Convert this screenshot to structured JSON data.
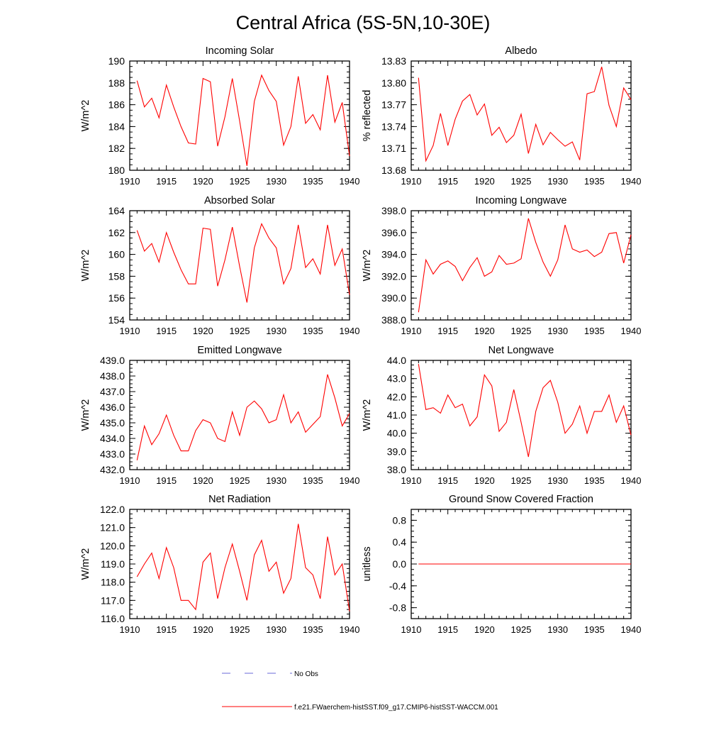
{
  "figure": {
    "title": "Central Africa (5S-5N,10-30E)",
    "colors": {
      "series": "#ff0000",
      "axis": "#000000",
      "obs": "#6a6ad8"
    }
  },
  "legend": {
    "obs_label": "No Obs",
    "model_label": "f.e21.FWaerchem-histSST.f09_g17.CMIP6-histSST-WACCM.001"
  },
  "chart_data": [
    {
      "type": "line",
      "title": "Incoming Solar",
      "ylabel": "W/m^2",
      "xlim": [
        1910,
        1940
      ],
      "ylim": [
        180,
        190
      ],
      "yticks": [
        180,
        182,
        184,
        186,
        188,
        190
      ],
      "ytick_labels": [
        "180",
        "182",
        "184",
        "186",
        "188",
        "190"
      ],
      "yminor": 0.5,
      "xticks": [
        1910,
        1915,
        1920,
        1925,
        1930,
        1935,
        1940
      ],
      "xtick_labels": [
        "1910",
        "1915",
        "1920",
        "1925",
        "1930",
        "1935",
        "1940"
      ],
      "x": [
        1911,
        1912,
        1913,
        1914,
        1915,
        1916,
        1917,
        1918,
        1919,
        1920,
        1921,
        1922,
        1923,
        1924,
        1925,
        1926,
        1927,
        1928,
        1929,
        1930,
        1931,
        1932,
        1933,
        1934,
        1935,
        1936,
        1937,
        1938,
        1939,
        1940
      ],
      "values": [
        188.2,
        185.8,
        186.6,
        184.8,
        187.8,
        185.8,
        184.0,
        182.5,
        182.4,
        188.4,
        188.1,
        182.2,
        184.9,
        188.4,
        184.5,
        180.4,
        186.3,
        188.7,
        187.3,
        186.3,
        182.3,
        184.0,
        188.6,
        184.3,
        185.1,
        183.7,
        188.7,
        184.4,
        186.2,
        181.3
      ]
    },
    {
      "type": "line",
      "title": "Albedo",
      "ylabel": "% reflected",
      "xlim": [
        1910,
        1940
      ],
      "ylim": [
        13.68,
        13.83
      ],
      "yticks": [
        13.68,
        13.71,
        13.74,
        13.77,
        13.8,
        13.83
      ],
      "ytick_labels": [
        "13.68",
        "13.71",
        "13.74",
        "13.77",
        "13.80",
        "13.83"
      ],
      "yminor": 0.0075,
      "xticks": [
        1910,
        1915,
        1920,
        1925,
        1930,
        1935,
        1940
      ],
      "xtick_labels": [
        "1910",
        "1915",
        "1920",
        "1925",
        "1930",
        "1935",
        "1940"
      ],
      "x": [
        1911,
        1912,
        1913,
        1914,
        1915,
        1916,
        1917,
        1918,
        1919,
        1920,
        1921,
        1922,
        1923,
        1924,
        1925,
        1926,
        1927,
        1928,
        1929,
        1930,
        1931,
        1932,
        1933,
        1934,
        1935,
        1936,
        1937,
        1938,
        1939,
        1940
      ],
      "values": [
        13.807,
        13.693,
        13.714,
        13.758,
        13.714,
        13.75,
        13.775,
        13.784,
        13.756,
        13.771,
        13.728,
        13.739,
        13.718,
        13.728,
        13.757,
        13.703,
        13.743,
        13.715,
        13.732,
        13.722,
        13.713,
        13.719,
        13.694,
        13.785,
        13.788,
        13.822,
        13.769,
        13.74,
        13.793,
        13.777
      ]
    },
    {
      "type": "line",
      "title": "Absorbed Solar",
      "ylabel": "W/m^2",
      "xlim": [
        1910,
        1940
      ],
      "ylim": [
        154,
        164
      ],
      "yticks": [
        154,
        156,
        158,
        160,
        162,
        164
      ],
      "ytick_labels": [
        "154",
        "156",
        "158",
        "160",
        "162",
        "164"
      ],
      "yminor": 0.5,
      "xticks": [
        1910,
        1915,
        1920,
        1925,
        1930,
        1935,
        1940
      ],
      "xtick_labels": [
        "1910",
        "1915",
        "1920",
        "1925",
        "1930",
        "1935",
        "1940"
      ],
      "x": [
        1911,
        1912,
        1913,
        1914,
        1915,
        1916,
        1917,
        1918,
        1919,
        1920,
        1921,
        1922,
        1923,
        1924,
        1925,
        1926,
        1927,
        1928,
        1929,
        1930,
        1931,
        1932,
        1933,
        1934,
        1935,
        1936,
        1937,
        1938,
        1939,
        1940
      ],
      "values": [
        162.2,
        160.3,
        161.0,
        159.3,
        162.0,
        160.2,
        158.6,
        157.3,
        157.3,
        162.4,
        162.3,
        157.1,
        159.5,
        162.5,
        158.9,
        155.6,
        160.6,
        162.8,
        161.5,
        160.6,
        157.3,
        158.7,
        162.7,
        158.8,
        159.6,
        158.2,
        162.7,
        159.0,
        160.5,
        156.3
      ]
    },
    {
      "type": "line",
      "title": "Incoming Longwave",
      "ylabel": "W/m^2",
      "xlim": [
        1910,
        1940
      ],
      "ylim": [
        388,
        398
      ],
      "yticks": [
        388,
        390,
        392,
        394,
        396,
        398
      ],
      "ytick_labels": [
        "388.0",
        "390.0",
        "392.0",
        "394.0",
        "396.0",
        "398.0"
      ],
      "yminor": 0.5,
      "xticks": [
        1910,
        1915,
        1920,
        1925,
        1930,
        1935,
        1940
      ],
      "xtick_labels": [
        "1910",
        "1915",
        "1920",
        "1925",
        "1930",
        "1935",
        "1940"
      ],
      "x": [
        1911,
        1912,
        1913,
        1914,
        1915,
        1916,
        1917,
        1918,
        1919,
        1920,
        1921,
        1922,
        1923,
        1924,
        1925,
        1926,
        1927,
        1928,
        1929,
        1930,
        1931,
        1932,
        1933,
        1934,
        1935,
        1936,
        1937,
        1938,
        1939,
        1940
      ],
      "values": [
        388.7,
        393.5,
        392.2,
        393.1,
        393.4,
        392.9,
        391.6,
        392.8,
        393.7,
        392.0,
        392.4,
        393.9,
        393.1,
        393.2,
        393.6,
        397.3,
        395.1,
        393.3,
        392.0,
        393.5,
        396.7,
        394.5,
        394.2,
        394.4,
        393.8,
        394.2,
        395.9,
        396.0,
        393.2,
        395.8
      ]
    },
    {
      "type": "line",
      "title": "Emitted Longwave",
      "ylabel": "W/m^2",
      "xlim": [
        1910,
        1940
      ],
      "ylim": [
        432,
        439
      ],
      "yticks": [
        432,
        433,
        434,
        435,
        436,
        437,
        438,
        439
      ],
      "ytick_labels": [
        "432.0",
        "433.0",
        "434.0",
        "435.0",
        "436.0",
        "437.0",
        "438.0",
        "439.0"
      ],
      "yminor": 0.25,
      "xticks": [
        1910,
        1915,
        1920,
        1925,
        1930,
        1935,
        1940
      ],
      "xtick_labels": [
        "1910",
        "1915",
        "1920",
        "1925",
        "1930",
        "1935",
        "1940"
      ],
      "x": [
        1911,
        1912,
        1913,
        1914,
        1915,
        1916,
        1917,
        1918,
        1919,
        1920,
        1921,
        1922,
        1923,
        1924,
        1925,
        1926,
        1927,
        1928,
        1929,
        1930,
        1931,
        1932,
        1933,
        1934,
        1935,
        1936,
        1937,
        1938,
        1939,
        1940
      ],
      "values": [
        432.6,
        434.8,
        433.6,
        434.3,
        435.5,
        434.2,
        433.2,
        433.2,
        434.5,
        435.2,
        435.0,
        434.0,
        433.8,
        435.7,
        434.2,
        436.0,
        436.4,
        435.9,
        435.0,
        435.2,
        436.8,
        435.0,
        435.7,
        434.4,
        434.9,
        435.4,
        438.1,
        436.6,
        434.8,
        435.6
      ]
    },
    {
      "type": "line",
      "title": "Net Longwave",
      "ylabel": "W/m^2",
      "xlim": [
        1910,
        1940
      ],
      "ylim": [
        38,
        44
      ],
      "yticks": [
        38,
        39,
        40,
        41,
        42,
        43,
        44
      ],
      "ytick_labels": [
        "38.0",
        "39.0",
        "40.0",
        "41.0",
        "42.0",
        "43.0",
        "44.0"
      ],
      "yminor": 0.25,
      "xticks": [
        1910,
        1915,
        1920,
        1925,
        1930,
        1935,
        1940
      ],
      "xtick_labels": [
        "1910",
        "1915",
        "1920",
        "1925",
        "1930",
        "1935",
        "1940"
      ],
      "x": [
        1911,
        1912,
        1913,
        1914,
        1915,
        1916,
        1917,
        1918,
        1919,
        1920,
        1921,
        1922,
        1923,
        1924,
        1925,
        1926,
        1927,
        1928,
        1929,
        1930,
        1931,
        1932,
        1933,
        1934,
        1935,
        1936,
        1937,
        1938,
        1939,
        1940
      ],
      "values": [
        43.8,
        41.3,
        41.4,
        41.1,
        42.1,
        41.4,
        41.6,
        40.4,
        40.9,
        43.2,
        42.6,
        40.1,
        40.6,
        42.4,
        40.6,
        38.7,
        41.2,
        42.5,
        42.9,
        41.7,
        40.0,
        40.5,
        41.5,
        40.0,
        41.2,
        41.2,
        42.1,
        40.6,
        41.5,
        39.9
      ]
    },
    {
      "type": "line",
      "title": "Net Radiation",
      "ylabel": "W/m^2",
      "xlim": [
        1910,
        1940
      ],
      "ylim": [
        116,
        122
      ],
      "yticks": [
        116,
        117,
        118,
        119,
        120,
        121,
        122
      ],
      "ytick_labels": [
        "116.0",
        "117.0",
        "118.0",
        "119.0",
        "120.0",
        "121.0",
        "122.0"
      ],
      "yminor": 0.25,
      "xticks": [
        1910,
        1915,
        1920,
        1925,
        1930,
        1935,
        1940
      ],
      "xtick_labels": [
        "1910",
        "1915",
        "1920",
        "1925",
        "1930",
        "1935",
        "1940"
      ],
      "x": [
        1911,
        1912,
        1913,
        1914,
        1915,
        1916,
        1917,
        1918,
        1919,
        1920,
        1921,
        1922,
        1923,
        1924,
        1925,
        1926,
        1927,
        1928,
        1929,
        1930,
        1931,
        1932,
        1933,
        1934,
        1935,
        1936,
        1937,
        1938,
        1939,
        1940
      ],
      "values": [
        118.3,
        119.0,
        119.6,
        118.2,
        119.9,
        118.8,
        117.0,
        117.0,
        116.5,
        119.1,
        119.6,
        117.1,
        118.8,
        120.1,
        118.6,
        117.0,
        119.5,
        120.3,
        118.6,
        119.1,
        117.4,
        118.2,
        121.2,
        118.8,
        118.4,
        117.1,
        120.5,
        118.4,
        119.0,
        116.4
      ]
    },
    {
      "type": "line",
      "title": "Ground Snow Covered Fraction",
      "ylabel": "unitless",
      "xlim": [
        1910,
        1940
      ],
      "ylim": [
        -1.0,
        1.0
      ],
      "yticks": [
        -0.8,
        -0.4,
        0.0,
        0.4,
        0.8
      ],
      "ytick_labels": [
        "-0.8",
        "-0.4",
        "0.0",
        "0.4",
        "0.8"
      ],
      "yminor": 0.1,
      "xticks": [
        1910,
        1915,
        1920,
        1925,
        1930,
        1935,
        1940
      ],
      "xtick_labels": [
        "1910",
        "1915",
        "1920",
        "1925",
        "1930",
        "1935",
        "1940"
      ],
      "x": [
        1911,
        1912,
        1913,
        1914,
        1915,
        1916,
        1917,
        1918,
        1919,
        1920,
        1921,
        1922,
        1923,
        1924,
        1925,
        1926,
        1927,
        1928,
        1929,
        1930,
        1931,
        1932,
        1933,
        1934,
        1935,
        1936,
        1937,
        1938,
        1939,
        1940
      ],
      "values": [
        0,
        0,
        0,
        0,
        0,
        0,
        0,
        0,
        0,
        0,
        0,
        0,
        0,
        0,
        0,
        0,
        0,
        0,
        0,
        0,
        0,
        0,
        0,
        0,
        0,
        0,
        0,
        0,
        0,
        0
      ]
    }
  ]
}
